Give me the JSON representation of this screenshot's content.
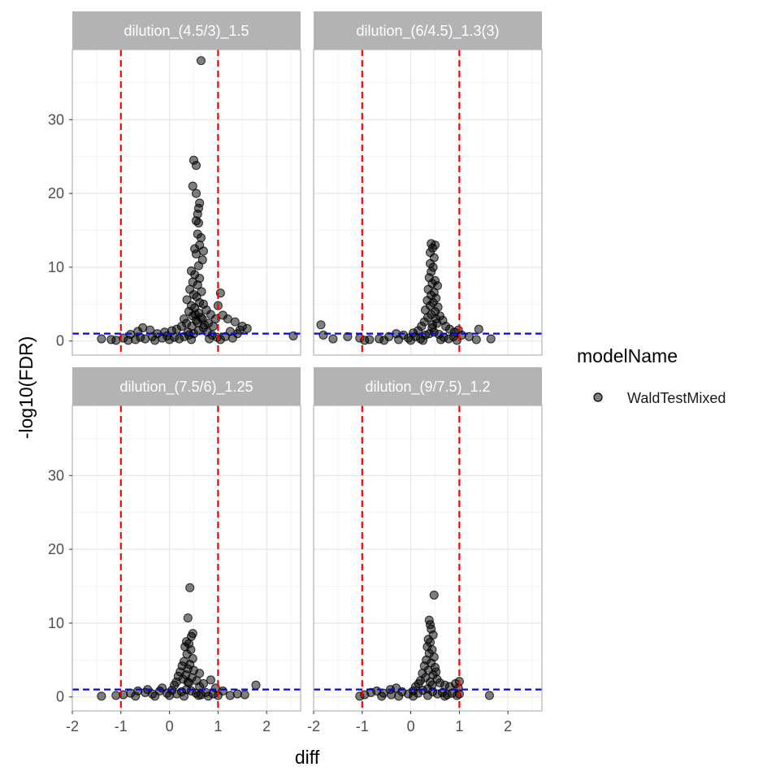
{
  "chart_data": {
    "type": "scatter",
    "xlabel": "diff",
    "ylabel": "-log10(FDR)",
    "xlim": [
      -2.0,
      2.7
    ],
    "ylim": [
      -1.9,
      39.5
    ],
    "x_ticks": [
      -2,
      -1,
      0,
      1,
      2
    ],
    "y_ticks": [
      0,
      10,
      20,
      30
    ],
    "grid": true,
    "legend": {
      "title": "modelName",
      "placement": "right",
      "entries": [
        {
          "name": "WaldTestMixed",
          "color": "#000000"
        }
      ]
    },
    "reference_lines": [
      {
        "orientation": "vertical",
        "value": -1,
        "color": "#ff0000",
        "style": "dashed"
      },
      {
        "orientation": "vertical",
        "value": 1,
        "color": "#ff0000",
        "style": "dashed"
      },
      {
        "orientation": "horizontal",
        "value": 1,
        "color": "#0000ff",
        "style": "dashed"
      }
    ],
    "panels": [
      {
        "title": "dilution_(4.5/3)_1.5",
        "points": [
          [
            0.65,
            38.0
          ],
          [
            0.5,
            24.5
          ],
          [
            0.55,
            23.8
          ],
          [
            0.48,
            21.0
          ],
          [
            0.55,
            20.0
          ],
          [
            0.62,
            18.7
          ],
          [
            0.6,
            18.0
          ],
          [
            0.58,
            17.2
          ],
          [
            0.55,
            16.3
          ],
          [
            0.6,
            16.0
          ],
          [
            0.58,
            14.5
          ],
          [
            0.65,
            14.0
          ],
          [
            0.62,
            13.0
          ],
          [
            0.52,
            12.5
          ],
          [
            0.7,
            12.2
          ],
          [
            0.55,
            11.8
          ],
          [
            0.68,
            11.0
          ],
          [
            0.6,
            10.2
          ],
          [
            0.45,
            9.5
          ],
          [
            0.52,
            9.0
          ],
          [
            0.62,
            8.5
          ],
          [
            0.48,
            8.0
          ],
          [
            0.58,
            7.6
          ],
          [
            0.42,
            7.0
          ],
          [
            0.66,
            6.7
          ],
          [
            0.5,
            6.3
          ],
          [
            0.56,
            6.0
          ],
          [
            0.36,
            5.6
          ],
          [
            0.62,
            5.2
          ],
          [
            0.7,
            5.0
          ],
          [
            0.45,
            4.8
          ],
          [
            0.52,
            4.5
          ],
          [
            0.76,
            4.2
          ],
          [
            0.4,
            4.0
          ],
          [
            0.6,
            3.8
          ],
          [
            0.85,
            3.6
          ],
          [
            0.48,
            3.4
          ],
          [
            0.65,
            3.2
          ],
          [
            0.95,
            3.0
          ],
          [
            0.3,
            3.0
          ],
          [
            0.55,
            2.8
          ],
          [
            1.05,
            6.5
          ],
          [
            1.0,
            4.8
          ],
          [
            1.1,
            3.5
          ],
          [
            1.2,
            3.0
          ],
          [
            1.35,
            2.6
          ],
          [
            1.5,
            2.0
          ],
          [
            1.45,
            1.5
          ],
          [
            1.6,
            1.7
          ],
          [
            1.25,
            1.3
          ],
          [
            1.4,
            1.0
          ],
          [
            0.8,
            2.4
          ],
          [
            0.72,
            2.2
          ],
          [
            0.9,
            2.0
          ],
          [
            0.35,
            2.4
          ],
          [
            0.25,
            2.0
          ],
          [
            0.15,
            1.6
          ],
          [
            0.05,
            1.4
          ],
          [
            -0.1,
            1.2
          ],
          [
            -0.25,
            1.0
          ],
          [
            -0.4,
            1.5
          ],
          [
            -0.55,
            1.8
          ],
          [
            -0.65,
            1.3
          ],
          [
            -0.8,
            0.9
          ],
          [
            -0.95,
            0.4
          ],
          [
            -1.2,
            0.2
          ],
          [
            -1.4,
            0.3
          ],
          [
            -1.1,
            0.1
          ],
          [
            -0.7,
            0.2
          ],
          [
            -0.5,
            0.3
          ],
          [
            -0.3,
            0.1
          ],
          [
            -0.15,
            0.4
          ],
          [
            0.0,
            0.2
          ],
          [
            0.1,
            0.5
          ],
          [
            0.2,
            0.3
          ],
          [
            0.3,
            0.6
          ],
          [
            0.4,
            0.8
          ],
          [
            0.5,
            1.0
          ],
          [
            0.6,
            1.4
          ],
          [
            0.7,
            1.8
          ],
          [
            0.78,
            1.2
          ],
          [
            0.88,
            0.8
          ],
          [
            0.98,
            0.5
          ],
          [
            1.15,
            0.6
          ],
          [
            1.3,
            0.4
          ],
          [
            2.55,
            0.7
          ],
          [
            -0.85,
            0.1
          ],
          [
            -0.6,
            0.5
          ],
          [
            -0.35,
            0.6
          ],
          [
            -0.05,
            0.7
          ],
          [
            0.45,
            0.2
          ],
          [
            0.82,
            0.3
          ],
          [
            1.05,
            0.2
          ],
          [
            0.38,
            1.2
          ],
          [
            0.58,
            2.5
          ],
          [
            0.68,
            3.0
          ],
          [
            0.46,
            2.0
          ],
          [
            0.53,
            3.6
          ]
        ]
      },
      {
        "title": "dilution_(6/4.5)_1.3(3)",
        "points": [
          [
            0.42,
            13.2
          ],
          [
            0.5,
            13.0
          ],
          [
            0.45,
            12.6
          ],
          [
            0.4,
            12.0
          ],
          [
            0.48,
            11.3
          ],
          [
            0.4,
            10.5
          ],
          [
            0.46,
            10.0
          ],
          [
            0.42,
            9.4
          ],
          [
            0.38,
            8.6
          ],
          [
            0.5,
            8.2
          ],
          [
            0.44,
            7.8
          ],
          [
            0.55,
            7.5
          ],
          [
            0.36,
            7.0
          ],
          [
            0.48,
            6.6
          ],
          [
            0.42,
            6.2
          ],
          [
            0.52,
            5.8
          ],
          [
            0.34,
            5.5
          ],
          [
            0.46,
            5.2
          ],
          [
            0.4,
            4.8
          ],
          [
            0.56,
            4.6
          ],
          [
            0.3,
            4.2
          ],
          [
            0.5,
            4.0
          ],
          [
            0.42,
            3.6
          ],
          [
            0.6,
            3.4
          ],
          [
            0.35,
            3.2
          ],
          [
            0.66,
            2.8
          ],
          [
            0.28,
            2.6
          ],
          [
            0.54,
            2.4
          ],
          [
            0.45,
            2.2
          ],
          [
            0.72,
            2.0
          ],
          [
            0.22,
            2.0
          ],
          [
            0.8,
            1.6
          ],
          [
            0.15,
            1.4
          ],
          [
            0.9,
            1.2
          ],
          [
            0.05,
            1.1
          ],
          [
            0.98,
            1.5
          ],
          [
            1.05,
            0.8
          ],
          [
            1.4,
            1.6
          ],
          [
            1.2,
            0.6
          ],
          [
            1.35,
            0.2
          ],
          [
            1.65,
            0.3
          ],
          [
            -1.85,
            2.2
          ],
          [
            -1.8,
            0.8
          ],
          [
            -1.6,
            0.3
          ],
          [
            -1.3,
            0.6
          ],
          [
            -1.05,
            0.4
          ],
          [
            -0.85,
            0.2
          ],
          [
            -0.65,
            0.3
          ],
          [
            -0.45,
            0.6
          ],
          [
            -0.3,
            1.0
          ],
          [
            -0.15,
            0.8
          ],
          [
            -0.05,
            0.4
          ],
          [
            0.1,
            0.6
          ],
          [
            0.2,
            0.3
          ],
          [
            0.3,
            0.8
          ],
          [
            0.38,
            1.0
          ],
          [
            0.48,
            1.2
          ],
          [
            0.58,
            0.9
          ],
          [
            0.68,
            0.5
          ],
          [
            0.78,
            0.3
          ],
          [
            0.88,
            0.6
          ],
          [
            -0.55,
            0.1
          ],
          [
            -0.25,
            0.2
          ],
          [
            0.0,
            0.1
          ],
          [
            0.25,
            0.1
          ],
          [
            0.62,
            0.2
          ],
          [
            0.95,
            0.1
          ],
          [
            -0.95,
            0.1
          ],
          [
            0.44,
            1.8
          ],
          [
            0.52,
            3.0
          ]
        ]
      },
      {
        "title": "dilution_(7.5/6)_1.25",
        "points": [
          [
            0.42,
            14.8
          ],
          [
            0.38,
            10.7
          ],
          [
            0.48,
            8.6
          ],
          [
            0.45,
            8.2
          ],
          [
            0.35,
            7.5
          ],
          [
            0.4,
            7.2
          ],
          [
            0.32,
            6.8
          ],
          [
            0.44,
            6.4
          ],
          [
            0.36,
            5.8
          ],
          [
            0.48,
            5.2
          ],
          [
            0.3,
            4.8
          ],
          [
            0.42,
            4.4
          ],
          [
            0.26,
            4.2
          ],
          [
            0.38,
            3.8
          ],
          [
            0.5,
            3.6
          ],
          [
            0.22,
            3.4
          ],
          [
            0.34,
            3.0
          ],
          [
            0.62,
            3.2
          ],
          [
            0.18,
            2.8
          ],
          [
            0.46,
            2.6
          ],
          [
            0.28,
            2.4
          ],
          [
            0.56,
            2.2
          ],
          [
            0.14,
            2.0
          ],
          [
            0.4,
            1.9
          ],
          [
            0.7,
            1.8
          ],
          [
            0.85,
            2.3
          ],
          [
            0.1,
            1.6
          ],
          [
            0.62,
            1.4
          ],
          [
            0.95,
            1.2
          ],
          [
            1.1,
            0.8
          ],
          [
            1.25,
            0.2
          ],
          [
            1.4,
            0.4
          ],
          [
            1.55,
            0.3
          ],
          [
            1.78,
            1.6
          ],
          [
            -1.1,
            0.2
          ],
          [
            -0.95,
            0.3
          ],
          [
            -0.8,
            0.5
          ],
          [
            -0.65,
            0.8
          ],
          [
            -0.5,
            0.6
          ],
          [
            -0.35,
            0.4
          ],
          [
            -0.2,
            0.8
          ],
          [
            -0.05,
            0.5
          ],
          [
            0.05,
            0.9
          ],
          [
            0.15,
            0.4
          ],
          [
            0.25,
            0.7
          ],
          [
            0.35,
            1.0
          ],
          [
            0.45,
            0.8
          ],
          [
            0.55,
            0.5
          ],
          [
            0.65,
            0.3
          ],
          [
            0.75,
            0.6
          ],
          [
            0.9,
            0.4
          ],
          [
            1.0,
            0.2
          ],
          [
            -1.4,
            0.1
          ],
          [
            -0.7,
            0.1
          ],
          [
            -0.3,
            0.1
          ],
          [
            0.0,
            0.2
          ],
          [
            0.3,
            0.1
          ],
          [
            0.6,
            0.2
          ],
          [
            0.8,
            0.1
          ],
          [
            -0.45,
            1.0
          ],
          [
            -0.15,
            1.2
          ],
          [
            0.38,
            2.0
          ]
        ]
      },
      {
        "title": "dilution_(9/7.5)_1.2",
        "points": [
          [
            0.48,
            13.8
          ],
          [
            0.38,
            10.4
          ],
          [
            0.4,
            9.8
          ],
          [
            0.42,
            9.2
          ],
          [
            0.46,
            8.4
          ],
          [
            0.36,
            7.8
          ],
          [
            0.4,
            7.4
          ],
          [
            0.34,
            6.8
          ],
          [
            0.44,
            6.4
          ],
          [
            0.38,
            5.9
          ],
          [
            0.48,
            5.4
          ],
          [
            0.32,
            5.0
          ],
          [
            0.42,
            4.6
          ],
          [
            0.28,
            4.2
          ],
          [
            0.5,
            4.0
          ],
          [
            0.36,
            3.6
          ],
          [
            0.24,
            3.2
          ],
          [
            0.46,
            3.0
          ],
          [
            0.3,
            2.6
          ],
          [
            0.54,
            2.4
          ],
          [
            0.2,
            2.2
          ],
          [
            0.4,
            2.0
          ],
          [
            0.6,
            1.9
          ],
          [
            0.16,
            1.8
          ],
          [
            0.7,
            1.6
          ],
          [
            0.8,
            1.4
          ],
          [
            0.1,
            1.4
          ],
          [
            0.92,
            1.8
          ],
          [
            0.98,
            1.2
          ],
          [
            1.0,
            2.1
          ],
          [
            1.0,
            0.4
          ],
          [
            1.62,
            0.2
          ],
          [
            -1.05,
            0.1
          ],
          [
            -0.95,
            0.3
          ],
          [
            -0.82,
            0.6
          ],
          [
            -0.7,
            0.8
          ],
          [
            -0.56,
            0.5
          ],
          [
            -0.42,
            1.0
          ],
          [
            -0.3,
            1.2
          ],
          [
            -0.18,
            0.7
          ],
          [
            -0.05,
            0.4
          ],
          [
            0.05,
            0.8
          ],
          [
            0.15,
            0.5
          ],
          [
            0.25,
            0.9
          ],
          [
            0.35,
            1.1
          ],
          [
            0.45,
            0.7
          ],
          [
            0.55,
            0.4
          ],
          [
            0.65,
            0.6
          ],
          [
            0.75,
            0.3
          ],
          [
            0.85,
            0.5
          ],
          [
            0.95,
            0.2
          ],
          [
            -0.6,
            0.1
          ],
          [
            -0.25,
            0.1
          ],
          [
            0.05,
            0.1
          ],
          [
            0.35,
            0.2
          ],
          [
            0.7,
            0.1
          ],
          [
            -0.4,
            0.3
          ],
          [
            0.44,
            1.6
          ],
          [
            0.52,
            3.4
          ]
        ]
      }
    ]
  }
}
